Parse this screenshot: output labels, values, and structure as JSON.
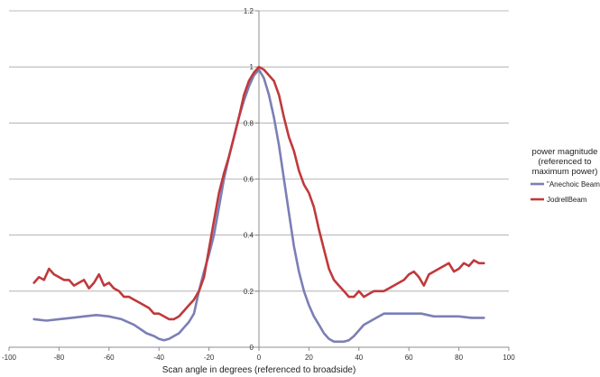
{
  "chart_data": {
    "type": "line",
    "xlabel": "Scan angle in degrees (referenced to broadside)",
    "ylabel": "",
    "xlim": [
      -100,
      100
    ],
    "ylim": [
      0,
      1.2
    ],
    "x_ticks": [
      -100,
      -80,
      -60,
      -40,
      -20,
      0,
      20,
      40,
      60,
      80,
      100
    ],
    "y_ticks": [
      0,
      0.2,
      0.4,
      0.6,
      0.8,
      1,
      1.2
    ],
    "grid": "horizontal",
    "legend_position": "right",
    "legend_title": "power magnitude (referenced to maximum power)",
    "legend_title_lines": [
      "power magnitude",
      "(referenced to",
      "maximum power)"
    ],
    "series": [
      {
        "name": "\"Anechoic Beam",
        "color": "#7b7fb5",
        "x": [
          -90,
          -85,
          -80,
          -75,
          -70,
          -65,
          -60,
          -55,
          -50,
          -45,
          -42,
          -40,
          -38,
          -36,
          -34,
          -32,
          -30,
          -28,
          -26,
          -24,
          -22,
          -20,
          -18,
          -16,
          -14,
          -12,
          -10,
          -8,
          -6,
          -4,
          -2,
          0,
          2,
          4,
          6,
          8,
          10,
          12,
          14,
          16,
          18,
          20,
          22,
          24,
          26,
          28,
          30,
          32,
          34,
          36,
          38,
          40,
          42,
          44,
          46,
          48,
          50,
          55,
          60,
          65,
          70,
          75,
          80,
          85,
          90
        ],
        "values": [
          0.1,
          0.095,
          0.1,
          0.105,
          0.11,
          0.115,
          0.11,
          0.1,
          0.08,
          0.05,
          0.04,
          0.03,
          0.025,
          0.03,
          0.04,
          0.05,
          0.07,
          0.09,
          0.12,
          0.2,
          0.27,
          0.33,
          0.4,
          0.5,
          0.6,
          0.68,
          0.75,
          0.82,
          0.88,
          0.93,
          0.97,
          0.99,
          0.96,
          0.9,
          0.82,
          0.72,
          0.6,
          0.48,
          0.36,
          0.27,
          0.2,
          0.15,
          0.11,
          0.08,
          0.05,
          0.03,
          0.02,
          0.02,
          0.02,
          0.025,
          0.04,
          0.06,
          0.08,
          0.09,
          0.1,
          0.11,
          0.12,
          0.12,
          0.12,
          0.12,
          0.11,
          0.11,
          0.11,
          0.105,
          0.105
        ]
      },
      {
        "name": "JodrellBeam",
        "color": "#c0393b",
        "x": [
          -90,
          -88,
          -86,
          -84,
          -82,
          -80,
          -78,
          -76,
          -74,
          -72,
          -70,
          -68,
          -66,
          -64,
          -62,
          -60,
          -58,
          -56,
          -54,
          -52,
          -50,
          -48,
          -46,
          -44,
          -42,
          -40,
          -38,
          -36,
          -34,
          -32,
          -30,
          -28,
          -26,
          -24,
          -22,
          -20,
          -18,
          -16,
          -14,
          -12,
          -10,
          -8,
          -6,
          -4,
          -2,
          0,
          2,
          4,
          6,
          8,
          10,
          12,
          14,
          16,
          18,
          20,
          22,
          24,
          26,
          28,
          30,
          32,
          34,
          36,
          38,
          40,
          42,
          44,
          46,
          48,
          50,
          52,
          54,
          56,
          58,
          60,
          62,
          64,
          66,
          68,
          70,
          72,
          74,
          76,
          78,
          80,
          82,
          84,
          86,
          88,
          90
        ],
        "values": [
          0.23,
          0.25,
          0.24,
          0.28,
          0.26,
          0.25,
          0.24,
          0.24,
          0.22,
          0.23,
          0.24,
          0.21,
          0.23,
          0.26,
          0.22,
          0.23,
          0.21,
          0.2,
          0.18,
          0.18,
          0.17,
          0.16,
          0.15,
          0.14,
          0.12,
          0.12,
          0.11,
          0.1,
          0.1,
          0.11,
          0.13,
          0.15,
          0.17,
          0.2,
          0.25,
          0.35,
          0.45,
          0.55,
          0.62,
          0.68,
          0.75,
          0.82,
          0.9,
          0.95,
          0.98,
          1.0,
          0.99,
          0.97,
          0.95,
          0.9,
          0.82,
          0.75,
          0.7,
          0.63,
          0.58,
          0.55,
          0.5,
          0.42,
          0.35,
          0.28,
          0.24,
          0.22,
          0.2,
          0.18,
          0.18,
          0.2,
          0.18,
          0.19,
          0.2,
          0.2,
          0.2,
          0.21,
          0.22,
          0.23,
          0.24,
          0.26,
          0.27,
          0.25,
          0.22,
          0.26,
          0.27,
          0.28,
          0.29,
          0.3,
          0.27,
          0.28,
          0.3,
          0.29,
          0.31,
          0.3,
          0.3
        ]
      }
    ]
  }
}
